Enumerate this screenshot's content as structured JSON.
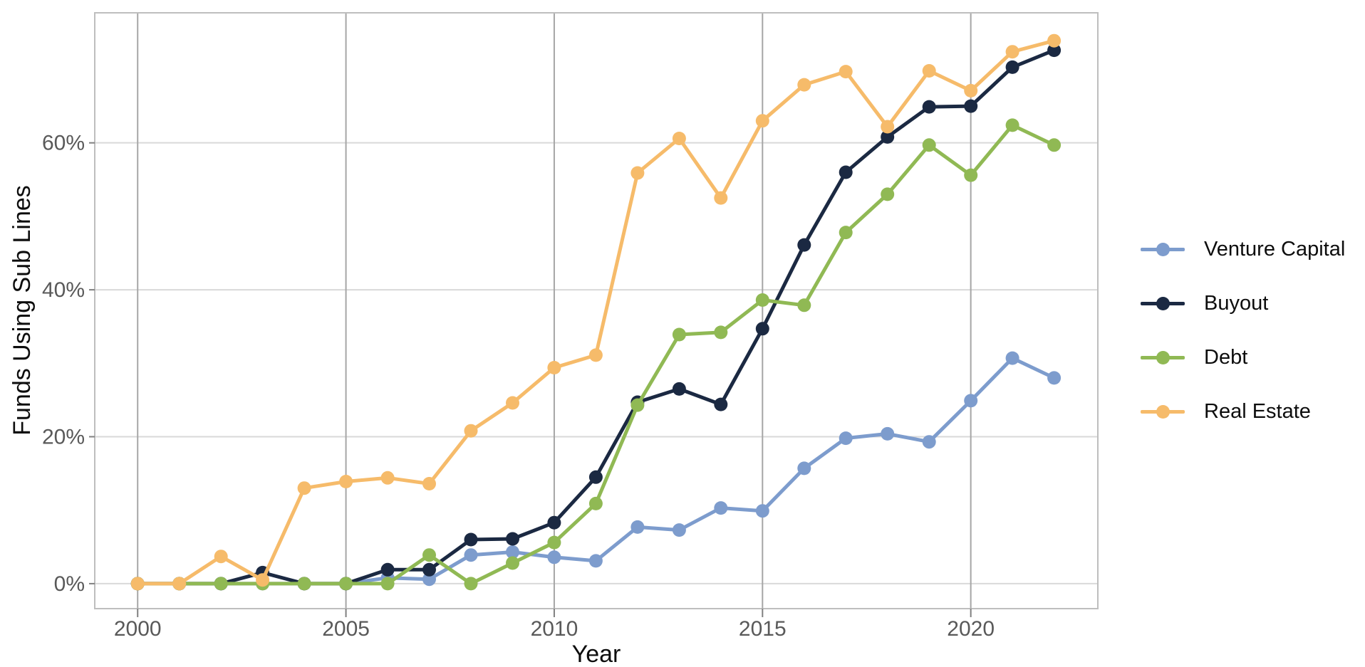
{
  "figure": {
    "background": "#ffffff"
  },
  "chart_data": {
    "type": "line",
    "title": "",
    "xlabel": "Year",
    "ylabel": "Funds Using Sub Lines",
    "x": [
      2000,
      2001,
      2002,
      2003,
      2004,
      2005,
      2006,
      2007,
      2008,
      2009,
      2010,
      2011,
      2012,
      2013,
      2014,
      2015,
      2016,
      2017,
      2018,
      2019,
      2020,
      2021,
      2022
    ],
    "series": [
      {
        "name": "Venture Capital",
        "color": "#7D9CCD",
        "values": [
          0,
          0,
          0,
          0,
          0,
          0,
          0.8,
          0.6,
          3.9,
          4.3,
          3.6,
          3.1,
          7.7,
          7.3,
          10.3,
          9.9,
          15.7,
          19.8,
          20.4,
          19.3,
          24.9,
          30.7,
          28.0
        ]
      },
      {
        "name": "Buyout",
        "color": "#1B2942",
        "values": [
          0,
          0,
          0,
          1.5,
          0,
          0,
          1.9,
          1.9,
          6.0,
          6.1,
          8.3,
          14.5,
          24.7,
          26.5,
          24.4,
          34.7,
          46.1,
          56.0,
          60.8,
          64.9,
          65.0,
          70.3,
          72.6
        ]
      },
      {
        "name": "Debt",
        "color": "#90B954",
        "values": [
          0,
          0,
          0,
          0,
          0,
          0,
          0,
          3.9,
          0,
          2.8,
          5.6,
          10.9,
          24.3,
          33.9,
          34.2,
          38.6,
          37.9,
          47.8,
          53.0,
          59.7,
          55.6,
          62.4,
          59.7
        ]
      },
      {
        "name": "Real Estate",
        "color": "#F6BB6A",
        "values": [
          0,
          0,
          3.7,
          0.5,
          13.0,
          13.9,
          14.4,
          13.6,
          20.8,
          24.6,
          29.4,
          31.1,
          55.9,
          60.6,
          52.5,
          63.0,
          67.9,
          69.7,
          62.2,
          69.8,
          67.1,
          72.4,
          73.9
        ]
      }
    ],
    "x_ticks": [
      2000,
      2005,
      2010,
      2015,
      2020
    ],
    "x_tick_labels": [
      "2000",
      "2005",
      "2010",
      "2015",
      "2020"
    ],
    "y_ticks": [
      0,
      20,
      40,
      60
    ],
    "y_tick_labels": [
      "0%",
      "20%",
      "40%",
      "60%"
    ],
    "xlim": [
      1998.97,
      2023.05
    ],
    "ylim": [
      -3.4,
      77.7
    ],
    "grid": {
      "horizontal": true,
      "vertical": true
    },
    "legend_position": "right"
  },
  "style": {
    "h_gridline_color": "#D9D9D9",
    "v_gridline_color": "#A6A6A6",
    "border_color": "#BEBEBE",
    "tick_color": "#808080",
    "tick_label_color": "#595959",
    "axis_title_color": "#0D0D0D",
    "line_width": 5,
    "point_radius": 9.5
  }
}
